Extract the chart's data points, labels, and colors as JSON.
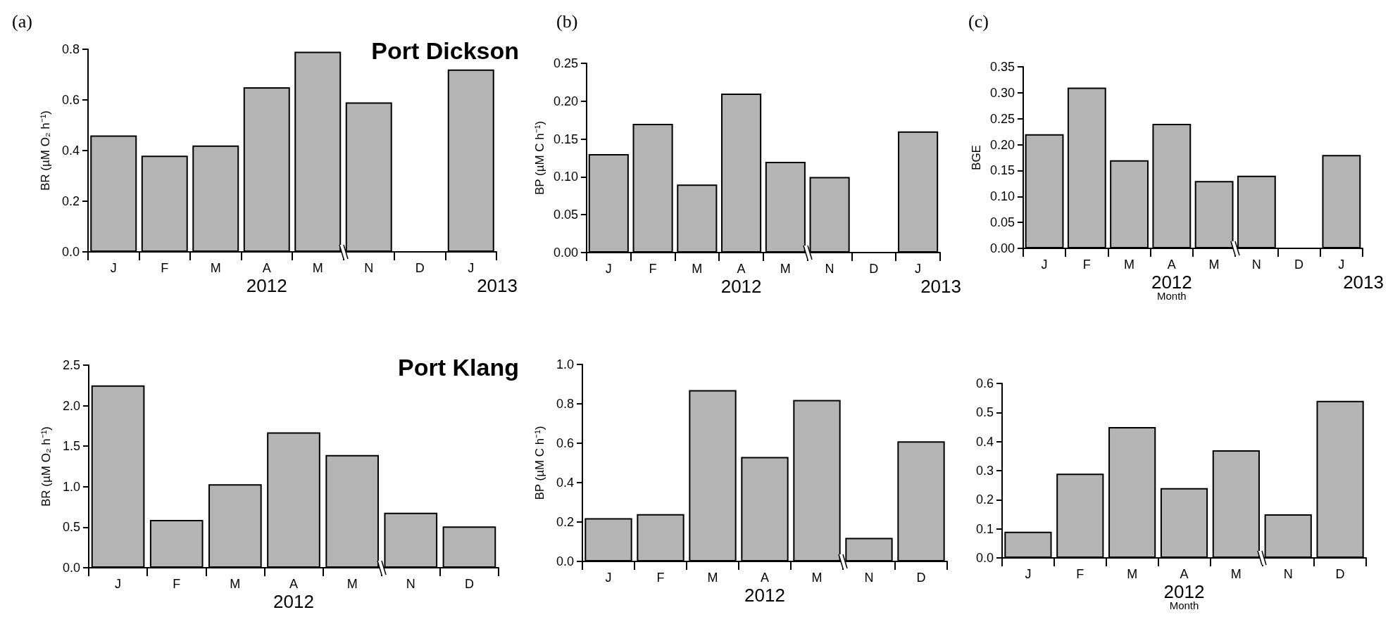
{
  "chart_data": [
    {
      "type": "bar",
      "title": "(a)",
      "subtitle": "Port Dickson",
      "ylabel": "BR (µM O₂ h⁻¹)",
      "categories": [
        "J",
        "F",
        "M",
        "A",
        "M",
        "N",
        "D",
        "J"
      ],
      "series": [
        {
          "color": "#b4b4b4",
          "values": [
            0.46,
            0.38,
            0.42,
            0.65,
            0.79,
            0.59,
            null,
            0.72
          ]
        }
      ],
      "ylim": [
        0,
        0.8
      ],
      "yticks": [
        {
          "value": 0,
          "label": "0.0"
        },
        0.2,
        0.4,
        0.6,
        0.8
      ],
      "annotations": [
        "2012",
        "2013"
      ]
    },
    {
      "type": "bar",
      "title": "(b)",
      "ylabel": "BP (µM C h⁻¹)",
      "categories": [
        "J",
        "F",
        "M",
        "A",
        "M",
        "N",
        "D",
        "J"
      ],
      "series": [
        {
          "color": "#b4b4b4",
          "values": [
            0.13,
            0.17,
            0.09,
            0.21,
            0.12,
            0.1,
            null,
            0.16
          ]
        }
      ],
      "ylim": [
        0,
        0.25
      ],
      "yticks": [
        {
          "value": 0,
          "label": "0.00"
        },
        0.05,
        {
          "value": 0.1,
          "label": "0.10"
        },
        0.15,
        {
          "value": 0.2,
          "label": "0.20"
        },
        0.25
      ],
      "annotations": [
        "2012",
        "2013"
      ]
    },
    {
      "type": "bar",
      "title": "(c)",
      "ylabel": "BGE",
      "xlabel": "Month",
      "categories": [
        "J",
        "F",
        "M",
        "A",
        "M",
        "N",
        "D",
        "J"
      ],
      "series": [
        {
          "color": "#b4b4b4",
          "values": [
            0.22,
            0.31,
            0.17,
            0.24,
            0.13,
            0.14,
            null,
            0.18
          ]
        }
      ],
      "ylim": [
        0,
        0.35
      ],
      "yticks": [
        {
          "value": 0,
          "label": "0.00"
        },
        0.05,
        {
          "value": 0.1,
          "label": "0.10"
        },
        0.15,
        {
          "value": 0.2,
          "label": "0.20"
        },
        0.25,
        {
          "value": 0.3,
          "label": "0.30"
        },
        0.35
      ],
      "annotations": [
        "2012",
        "2013"
      ]
    },
    {
      "type": "bar",
      "subtitle": "Port Klang",
      "ylabel": "BR (µM O₂ h⁻¹)",
      "categories": [
        "J",
        "F",
        "M",
        "A",
        "M",
        "N",
        "D"
      ],
      "series": [
        {
          "color": "#b4b4b4",
          "values": [
            2.25,
            0.59,
            1.03,
            1.67,
            1.39,
            0.68,
            0.51
          ]
        }
      ],
      "ylim": [
        0,
        2.5
      ],
      "yticks": [
        {
          "value": 0,
          "label": "0.0"
        },
        0.5,
        {
          "value": 1,
          "label": "1.0"
        },
        1.5,
        {
          "value": 2,
          "label": "2.0"
        },
        2.5
      ],
      "annotations": [
        "2012"
      ]
    },
    {
      "type": "bar",
      "ylabel": "BP (µM C h⁻¹)",
      "categories": [
        "J",
        "F",
        "M",
        "A",
        "M",
        "N",
        "D"
      ],
      "series": [
        {
          "color": "#b4b4b4",
          "values": [
            0.22,
            0.24,
            0.87,
            0.53,
            0.82,
            0.12,
            0.61
          ]
        }
      ],
      "ylim": [
        0,
        1.0
      ],
      "yticks": [
        {
          "value": 0,
          "label": "0.0"
        },
        0.2,
        0.4,
        0.6,
        0.8,
        {
          "value": 1,
          "label": "1.0"
        }
      ],
      "annotations": [
        "2012"
      ]
    },
    {
      "type": "bar",
      "xlabel": "Month",
      "categories": [
        "J",
        "F",
        "M",
        "A",
        "M",
        "N",
        "D"
      ],
      "series": [
        {
          "color": "#b4b4b4",
          "values": [
            0.09,
            0.29,
            0.45,
            0.24,
            0.37,
            0.15,
            0.54
          ]
        }
      ],
      "ylim": [
        0,
        0.6
      ],
      "yticks": [
        {
          "value": 0,
          "label": "0.0"
        },
        0.1,
        0.2,
        0.3,
        0.4,
        0.5,
        0.6
      ],
      "annotations": [
        "2012"
      ]
    }
  ]
}
